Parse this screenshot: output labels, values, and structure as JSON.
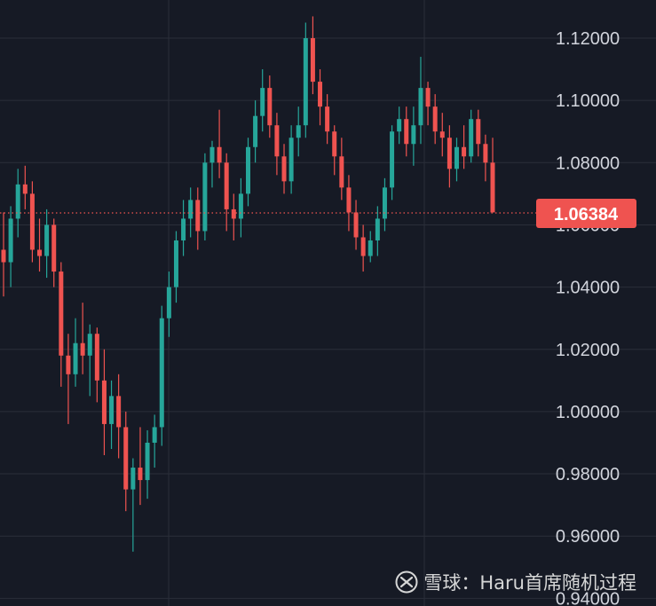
{
  "colors": {
    "background": "#161a25",
    "grid": "#2a2e39",
    "up": "#26a69a",
    "down": "#ef5350",
    "text": "#d1d4dc",
    "price_line": "#ef5350"
  },
  "watermark": {
    "text": "雪球：Haru首席随机过程",
    "icon": "snowball-logo-icon"
  },
  "chart_data": {
    "type": "candlestick",
    "y_axis": {
      "ylim": [
        0.94,
        1.13
      ],
      "ticks": [
        "1.12000",
        "1.10000",
        "1.08000",
        "1.06000",
        "1.04000",
        "1.02000",
        "1.00000",
        "0.98000",
        "0.96000",
        "0.94000"
      ],
      "position": "right"
    },
    "grid": true,
    "last_price": "1.06384",
    "candles": [
      [
        1.052,
        1.064,
        1.037,
        1.048
      ],
      [
        1.048,
        1.066,
        1.04,
        1.062
      ],
      [
        1.062,
        1.078,
        1.056,
        1.073
      ],
      [
        1.073,
        1.079,
        1.065,
        1.07
      ],
      [
        1.07,
        1.074,
        1.048,
        1.052
      ],
      [
        1.052,
        1.062,
        1.045,
        1.05
      ],
      [
        1.05,
        1.065,
        1.043,
        1.06
      ],
      [
        1.06,
        1.062,
        1.04,
        1.045
      ],
      [
        1.045,
        1.048,
        1.008,
        1.018
      ],
      [
        1.018,
        1.025,
        0.996,
        1.012
      ],
      [
        1.012,
        1.03,
        1.008,
        1.022
      ],
      [
        1.022,
        1.035,
        1.012,
        1.018
      ],
      [
        1.018,
        1.028,
        1.005,
        1.025
      ],
      [
        1.025,
        1.027,
        1.003,
        1.01
      ],
      [
        1.01,
        1.02,
        0.986,
        0.996
      ],
      [
        0.996,
        1.01,
        0.988,
        1.005
      ],
      [
        1.005,
        1.012,
        0.985,
        0.995
      ],
      [
        0.995,
        1.0,
        0.968,
        0.975
      ],
      [
        0.975,
        0.985,
        0.955,
        0.982
      ],
      [
        0.982,
        0.995,
        0.97,
        0.978
      ],
      [
        0.978,
        0.994,
        0.972,
        0.99
      ],
      [
        0.99,
        0.999,
        0.982,
        0.995
      ],
      [
        0.995,
        1.034,
        0.989,
        1.03
      ],
      [
        1.03,
        1.045,
        1.024,
        1.04
      ],
      [
        1.04,
        1.058,
        1.035,
        1.055
      ],
      [
        1.055,
        1.068,
        1.05,
        1.062
      ],
      [
        1.062,
        1.072,
        1.056,
        1.068
      ],
      [
        1.068,
        1.072,
        1.052,
        1.058
      ],
      [
        1.058,
        1.083,
        1.055,
        1.08
      ],
      [
        1.08,
        1.087,
        1.072,
        1.085
      ],
      [
        1.085,
        1.097,
        1.075,
        1.08
      ],
      [
        1.08,
        1.083,
        1.058,
        1.065
      ],
      [
        1.065,
        1.07,
        1.055,
        1.062
      ],
      [
        1.062,
        1.075,
        1.056,
        1.07
      ],
      [
        1.07,
        1.088,
        1.066,
        1.085
      ],
      [
        1.085,
        1.1,
        1.08,
        1.095
      ],
      [
        1.095,
        1.11,
        1.09,
        1.104
      ],
      [
        1.104,
        1.108,
        1.088,
        1.092
      ],
      [
        1.092,
        1.096,
        1.076,
        1.082
      ],
      [
        1.082,
        1.086,
        1.07,
        1.074
      ],
      [
        1.074,
        1.092,
        1.07,
        1.088
      ],
      [
        1.088,
        1.098,
        1.082,
        1.092
      ],
      [
        1.092,
        1.125,
        1.088,
        1.12
      ],
      [
        1.12,
        1.127,
        1.102,
        1.106
      ],
      [
        1.106,
        1.11,
        1.092,
        1.098
      ],
      [
        1.098,
        1.102,
        1.086,
        1.09
      ],
      [
        1.09,
        1.092,
        1.076,
        1.082
      ],
      [
        1.082,
        1.088,
        1.068,
        1.072
      ],
      [
        1.072,
        1.076,
        1.058,
        1.064
      ],
      [
        1.064,
        1.068,
        1.052,
        1.056
      ],
      [
        1.056,
        1.06,
        1.045,
        1.05
      ],
      [
        1.05,
        1.058,
        1.048,
        1.055
      ],
      [
        1.055,
        1.066,
        1.05,
        1.062
      ],
      [
        1.062,
        1.075,
        1.058,
        1.072
      ],
      [
        1.072,
        1.092,
        1.068,
        1.09
      ],
      [
        1.09,
        1.098,
        1.086,
        1.094
      ],
      [
        1.094,
        1.098,
        1.082,
        1.086
      ],
      [
        1.086,
        1.098,
        1.079,
        1.092
      ],
      [
        1.092,
        1.114,
        1.086,
        1.104
      ],
      [
        1.104,
        1.106,
        1.092,
        1.098
      ],
      [
        1.098,
        1.102,
        1.086,
        1.09
      ],
      [
        1.09,
        1.096,
        1.082,
        1.088
      ],
      [
        1.088,
        1.092,
        1.072,
        1.078
      ],
      [
        1.078,
        1.088,
        1.074,
        1.085
      ],
      [
        1.085,
        1.092,
        1.078,
        1.082
      ],
      [
        1.082,
        1.097,
        1.08,
        1.094
      ],
      [
        1.094,
        1.097,
        1.082,
        1.086
      ],
      [
        1.086,
        1.089,
        1.074,
        1.08
      ],
      [
        1.08,
        1.088,
        1.064,
        1.064
      ]
    ]
  }
}
